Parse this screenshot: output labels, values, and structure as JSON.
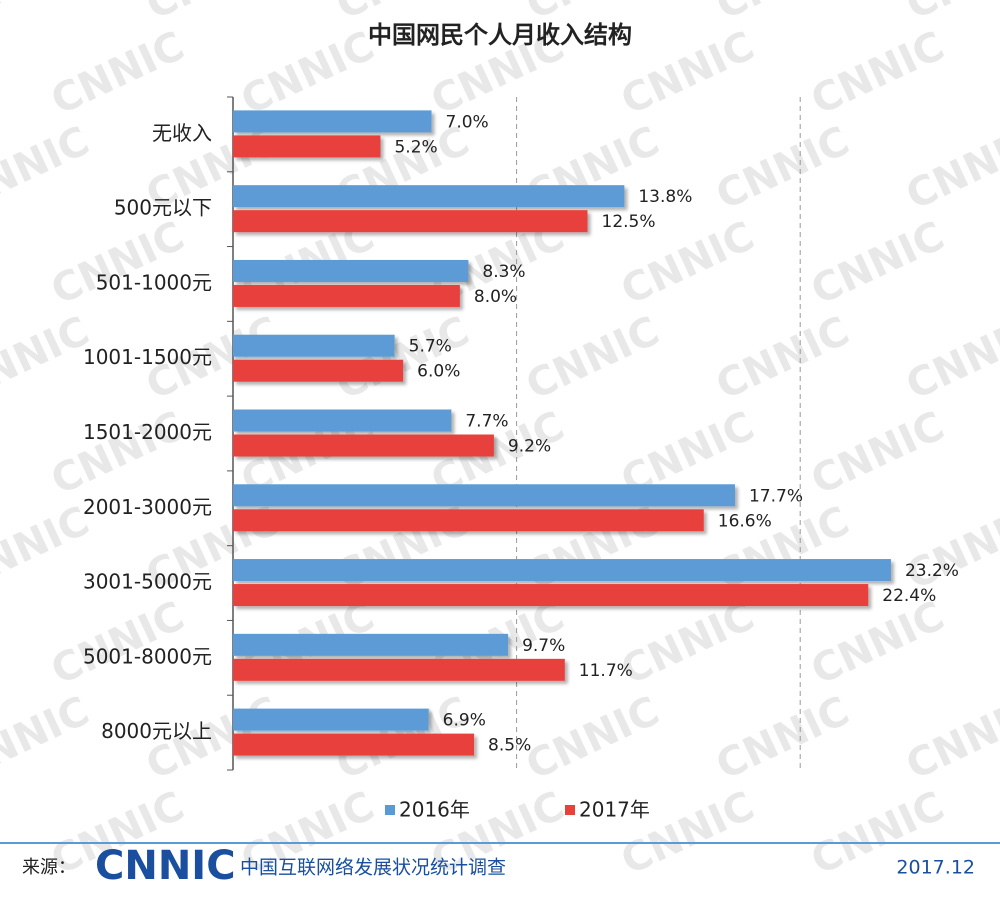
{
  "chart_data": {
    "type": "hbar",
    "title": "中国网民个人月收入结构",
    "categories": [
      "无收入",
      "500元以下",
      "501-1000元",
      "1001-1500元",
      "1501-2000元",
      "2001-3000元",
      "3001-5000元",
      "5001-8000元",
      "8000元以上"
    ],
    "series": [
      {
        "name": "2016年",
        "color": "#5b9bd5",
        "values": [
          7.0,
          13.8,
          8.3,
          5.7,
          7.7,
          17.7,
          23.2,
          9.7,
          6.9
        ],
        "value_labels": [
          "7.0%",
          "13.8%",
          "8.3%",
          "5.7%",
          "7.7%",
          "17.7%",
          "23.2%",
          "9.7%",
          "6.9%"
        ]
      },
      {
        "name": "2017年",
        "color": "#e8413c",
        "values": [
          5.2,
          12.5,
          8.0,
          6.0,
          9.2,
          16.6,
          22.4,
          11.7,
          8.5
        ],
        "value_labels": [
          "5.2%",
          "12.5%",
          "8.0%",
          "6.0%",
          "9.2%",
          "16.6%",
          "22.4%",
          "11.7%",
          "8.5%"
        ]
      }
    ],
    "xlim": [
      0,
      25
    ],
    "xticks": [
      10,
      20
    ],
    "grid": true,
    "watermark": "CNNIC",
    "footer": {
      "source_label": "来源：",
      "logo": "CNNIC",
      "source": "中国互联网络发展状况统计调查",
      "date": "2017.12"
    }
  }
}
